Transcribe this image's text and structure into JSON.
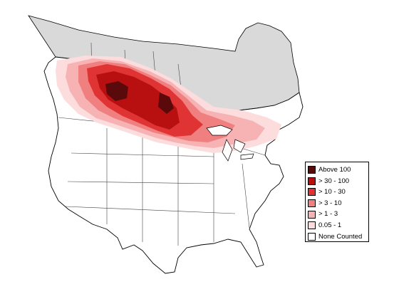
{
  "map": {
    "region": "North America",
    "colors": {
      "land": "#ffffff",
      "no_survey": "#d9d9d9",
      "borders": "#000000",
      "state_lines": "#444444"
    }
  },
  "legend": {
    "items": [
      {
        "label": "Above 100",
        "color": "#5a0a0a"
      },
      {
        "label": "> 30 - 100",
        "color": "#b81010"
      },
      {
        "label": "> 10 - 30",
        "color": "#e03434"
      },
      {
        "label": "> 3 - 10",
        "color": "#f07f7f"
      },
      {
        "label": "> 1 - 3",
        "color": "#f7b3b3"
      },
      {
        "label": "0.05 - 1",
        "color": "#fcdcdc"
      },
      {
        "label": "None Counted",
        "color": "#ffffff"
      }
    ]
  }
}
